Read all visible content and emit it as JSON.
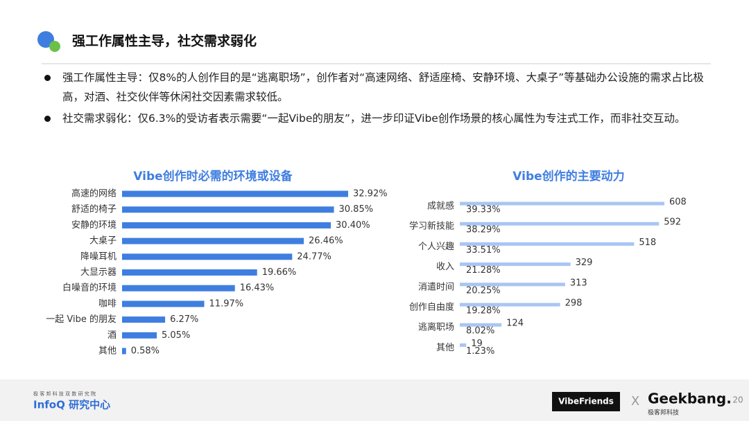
{
  "header": {
    "title": "强工作属性主导，社交需求弱化"
  },
  "bullets": [
    "强工作属性主导：仅8%的人创作目的是“逃离职场”，创作者对“高速网络、舒适座椅、安静环境、大桌子”等基础办公设施的需求占比极高，对酒、社交伙伴等休闲社交因素需求较低。",
    "社交需求弱化：仅6.3%的受访者表示需要“一起Vibe的朋友”，进一步印证Vibe创作场景的核心属性为专注式工作，而非社交互动。"
  ],
  "chart_data": [
    {
      "type": "bar",
      "orientation": "horizontal",
      "title": "Vibe创作时必需的环境或设备",
      "color": "#3f7ee0",
      "categories": [
        "高速的网络",
        "舒适的椅子",
        "安静的环境",
        "大桌子",
        "降噪耳机",
        "大显示器",
        "白噪音的环境",
        "咖啡",
        "一起 Vibe 的朋友",
        "酒",
        "其他"
      ],
      "values": [
        32.92,
        30.85,
        30.4,
        26.46,
        24.77,
        19.66,
        16.43,
        11.97,
        6.27,
        5.05,
        0.58
      ],
      "value_labels": [
        "32.92%",
        "30.85%",
        "30.40%",
        "26.46%",
        "24.77%",
        "19.66%",
        "16.43%",
        "11.97%",
        "6.27%",
        "5.05%",
        "0.58%"
      ]
    },
    {
      "type": "bar",
      "orientation": "horizontal",
      "title": "Vibe创作的主要动力",
      "color": "#a9c5f3",
      "categories": [
        "成就感",
        "学习新技能",
        "个人兴趣",
        "收入",
        "消遣时间",
        "创作自由度",
        "逃离职场",
        "其他"
      ],
      "values": [
        608,
        592,
        518,
        329,
        313,
        298,
        124,
        19
      ],
      "percent_labels": [
        "39.33%",
        "38.29%",
        "33.51%",
        "21.28%",
        "20.25%",
        "19.28%",
        "8.02%",
        "1.23%"
      ]
    }
  ],
  "footer": {
    "org_small": "极 客 邦 科 技 双 数 研 究 院",
    "org": "InfoQ 研究中心",
    "partner": "VibeFriends",
    "x": "X",
    "brand": "Geekbang.",
    "brand_sub": "极客邦科技",
    "page": "20"
  }
}
